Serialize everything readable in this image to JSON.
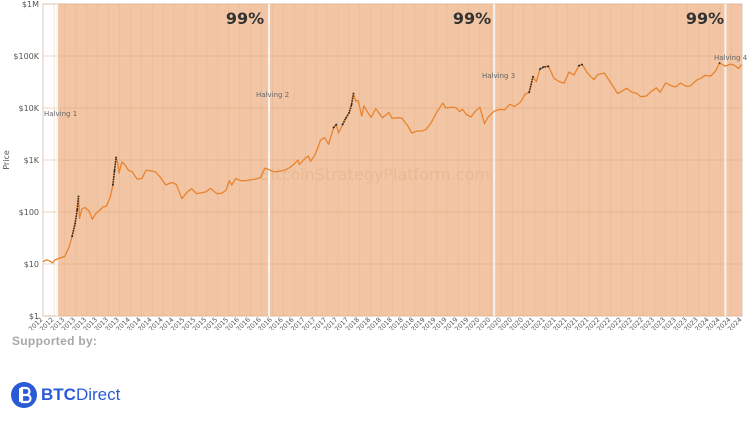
{
  "chart_data": {
    "type": "line",
    "title": "",
    "watermark": "BitcoinStrategyPlatform.com",
    "ylabel": "Price",
    "xlabel": "",
    "y_scale": "log",
    "ylim": [
      1,
      1000000
    ],
    "y_ticks": [
      "$1",
      "$10",
      "$100",
      "$1K",
      "$10K",
      "$100K",
      "$1M"
    ],
    "xlim": [
      "2012-09-01",
      "2024-08-01"
    ],
    "grid": true,
    "x_tick_labels": [
      "01-09-2012",
      "09-11-2012",
      "15-01-2013",
      "24-03-2013",
      "31-05-2013",
      "07-08-2013",
      "14-10-2013",
      "21-12-2013",
      "27-02-2014",
      "06-05-2014",
      "13-07-2014",
      "19-09-2014",
      "26-11-2014",
      "02-02-2015",
      "11-04-2015",
      "18-06-2015",
      "25-08-2015",
      "01-11-2015",
      "08-01-2016",
      "16-03-2016",
      "23-05-2016",
      "30-07-2016",
      "06-10-2016",
      "13-12-2016",
      "19-02-2017",
      "28-04-2017",
      "05-07-2017",
      "11-09-2017",
      "18-11-2017",
      "25-01-2018",
      "04-04-2018",
      "10-06-2018",
      "17-08-2018",
      "24-10-2018",
      "31-12-2018",
      "09-03-2019",
      "16-05-2019",
      "23-07-2019",
      "29-09-2019",
      "06-12-2019",
      "12-02-2020",
      "20-04-2020",
      "27-06-2020",
      "03-09-2020",
      "10-11-2020",
      "17-01-2021",
      "26-03-2021",
      "02-06-2021",
      "09-08-2021",
      "16-10-2021",
      "23-12-2021",
      "01-03-2022",
      "08-05-2022",
      "15-07-2022",
      "21-09-2022",
      "28-11-2022",
      "04-02-2023",
      "13-04-2023",
      "20-06-2023",
      "27-08-2023",
      "03-11-2023",
      "10-01-2024",
      "18-03-2024",
      "25-05-2024",
      "01-08-2024"
    ],
    "background_band": {
      "start": "2012-11-28",
      "end": "2024-07-31",
      "color": "#f2c6a4"
    },
    "period_labels": [
      "99%",
      "99%",
      "99%"
    ],
    "halvings": [
      {
        "name": "Halving 1",
        "date": "2012-11-28"
      },
      {
        "name": "Halving 2",
        "date": "2016-07-09"
      },
      {
        "name": "Halving 3",
        "date": "2020-05-11"
      },
      {
        "name": "Halving 4",
        "date": "2024-04-20"
      }
    ],
    "series": [
      {
        "color": "#e8842f",
        "points": [
          [
            "2012-09-01",
            11
          ],
          [
            "2012-09-20",
            12
          ],
          [
            "2012-10-10",
            11.5
          ],
          [
            "2012-10-31",
            10.5
          ],
          [
            "2012-11-15",
            12
          ],
          [
            "2012-12-15",
            13
          ],
          [
            "2013-01-15",
            14
          ],
          [
            "2013-02-10",
            21
          ],
          [
            "2013-03-01",
            34
          ],
          [
            "2013-03-20",
            60
          ],
          [
            "2013-04-02",
            110
          ],
          [
            "2013-04-10",
            200
          ],
          [
            "2013-04-16",
            75
          ],
          [
            "2013-05-01",
            115
          ],
          [
            "2013-05-20",
            122
          ],
          [
            "2013-06-15",
            105
          ],
          [
            "2013-07-05",
            72
          ],
          [
            "2013-07-25",
            92
          ],
          [
            "2013-08-15",
            105
          ],
          [
            "2013-09-10",
            125
          ],
          [
            "2013-10-01",
            130
          ],
          [
            "2013-10-25",
            195
          ],
          [
            "2013-11-10",
            330
          ],
          [
            "2013-11-20",
            620
          ],
          [
            "2013-11-30",
            1120
          ],
          [
            "2013-12-10",
            880
          ],
          [
            "2013-12-18",
            560
          ],
          [
            "2014-01-05",
            920
          ],
          [
            "2014-01-25",
            800
          ],
          [
            "2014-02-15",
            630
          ],
          [
            "2014-03-10",
            600
          ],
          [
            "2014-04-10",
            430
          ],
          [
            "2014-05-10",
            440
          ],
          [
            "2014-06-05",
            640
          ],
          [
            "2014-07-01",
            620
          ],
          [
            "2014-08-01",
            590
          ],
          [
            "2014-09-01",
            470
          ],
          [
            "2014-10-05",
            330
          ],
          [
            "2014-11-10",
            370
          ],
          [
            "2014-12-10",
            340
          ],
          [
            "2015-01-14",
            180
          ],
          [
            "2015-02-15",
            240
          ],
          [
            "2015-03-15",
            280
          ],
          [
            "2015-04-15",
            225
          ],
          [
            "2015-05-15",
            235
          ],
          [
            "2015-06-15",
            245
          ],
          [
            "2015-07-10",
            285
          ],
          [
            "2015-08-20",
            225
          ],
          [
            "2015-09-20",
            230
          ],
          [
            "2015-10-15",
            260
          ],
          [
            "2015-11-04",
            400
          ],
          [
            "2015-11-20",
            330
          ],
          [
            "2015-12-15",
            440
          ],
          [
            "2016-01-15",
            400
          ],
          [
            "2016-02-15",
            400
          ],
          [
            "2016-03-15",
            415
          ],
          [
            "2016-04-15",
            430
          ],
          [
            "2016-05-15",
            455
          ],
          [
            "2016-06-15",
            700
          ],
          [
            "2016-07-09",
            650
          ],
          [
            "2016-08-10",
            590
          ],
          [
            "2016-09-15",
            610
          ],
          [
            "2016-10-15",
            640
          ],
          [
            "2016-11-15",
            710
          ],
          [
            "2016-12-20",
            880
          ],
          [
            "2017-01-05",
            1000
          ],
          [
            "2017-01-15",
            820
          ],
          [
            "2017-02-15",
            1050
          ],
          [
            "2017-03-10",
            1200
          ],
          [
            "2017-03-25",
            950
          ],
          [
            "2017-04-20",
            1250
          ],
          [
            "2017-05-10",
            1750
          ],
          [
            "2017-05-25",
            2400
          ],
          [
            "2017-06-20",
            2700
          ],
          [
            "2017-07-15",
            2000
          ],
          [
            "2017-08-15",
            4200
          ],
          [
            "2017-09-01",
            4800
          ],
          [
            "2017-09-15",
            3300
          ],
          [
            "2017-10-10",
            4800
          ],
          [
            "2017-11-01",
            6500
          ],
          [
            "2017-11-20",
            8100
          ],
          [
            "2017-12-05",
            11500
          ],
          [
            "2017-12-17",
            19000
          ],
          [
            "2017-12-30",
            13500
          ],
          [
            "2018-01-15",
            14000
          ],
          [
            "2018-02-06",
            7000
          ],
          [
            "2018-02-20",
            11000
          ],
          [
            "2018-03-15",
            8300
          ],
          [
            "2018-04-06",
            6600
          ],
          [
            "2018-05-05",
            9700
          ],
          [
            "2018-06-15",
            6500
          ],
          [
            "2018-07-25",
            8200
          ],
          [
            "2018-08-15",
            6300
          ],
          [
            "2018-09-15",
            6500
          ],
          [
            "2018-10-15",
            6400
          ],
          [
            "2018-11-20",
            4500
          ],
          [
            "2018-12-15",
            3300
          ],
          [
            "2019-01-15",
            3600
          ],
          [
            "2019-02-15",
            3600
          ],
          [
            "2019-03-15",
            3900
          ],
          [
            "2019-04-15",
            5200
          ],
          [
            "2019-05-15",
            7900
          ],
          [
            "2019-06-26",
            12500
          ],
          [
            "2019-07-15",
            10000
          ],
          [
            "2019-08-15",
            10400
          ],
          [
            "2019-09-15",
            10200
          ],
          [
            "2019-10-10",
            8500
          ],
          [
            "2019-10-26",
            9500
          ],
          [
            "2019-11-20",
            7500
          ],
          [
            "2019-12-18",
            6700
          ],
          [
            "2020-01-15",
            8700
          ],
          [
            "2020-02-12",
            10300
          ],
          [
            "2020-03-12",
            5000
          ],
          [
            "2020-04-01",
            6500
          ],
          [
            "2020-05-11",
            8700
          ],
          [
            "2020-06-15",
            9400
          ],
          [
            "2020-07-15",
            9200
          ],
          [
            "2020-08-15",
            11800
          ],
          [
            "2020-09-15",
            10700
          ],
          [
            "2020-10-20",
            12800
          ],
          [
            "2020-11-20",
            18500
          ],
          [
            "2020-12-15",
            20000
          ],
          [
            "2021-01-08",
            40000
          ],
          [
            "2021-01-28",
            32000
          ],
          [
            "2021-02-20",
            56000
          ],
          [
            "2021-03-13",
            61000
          ],
          [
            "2021-04-14",
            63500
          ],
          [
            "2021-05-19",
            37000
          ],
          [
            "2021-06-22",
            32000
          ],
          [
            "2021-07-20",
            30000
          ],
          [
            "2021-08-20",
            49000
          ],
          [
            "2021-09-20",
            43000
          ],
          [
            "2021-10-20",
            65000
          ],
          [
            "2021-11-10",
            68500
          ],
          [
            "2021-12-10",
            48000
          ],
          [
            "2022-01-22",
            35000
          ],
          [
            "2022-02-15",
            44000
          ],
          [
            "2022-03-28",
            47000
          ],
          [
            "2022-05-12",
            29000
          ],
          [
            "2022-06-18",
            19000
          ],
          [
            "2022-07-15",
            21000
          ],
          [
            "2022-08-15",
            24000
          ],
          [
            "2022-09-15",
            20000
          ],
          [
            "2022-10-15",
            19200
          ],
          [
            "2022-11-10",
            16500
          ],
          [
            "2022-12-15",
            17000
          ],
          [
            "2023-01-15",
            21000
          ],
          [
            "2023-02-15",
            24500
          ],
          [
            "2023-03-10",
            20000
          ],
          [
            "2023-04-14",
            30500
          ],
          [
            "2023-05-15",
            27000
          ],
          [
            "2023-06-15",
            25500
          ],
          [
            "2023-07-15",
            30300
          ],
          [
            "2023-08-20",
            26000
          ],
          [
            "2023-09-15",
            26600
          ],
          [
            "2023-10-25",
            34500
          ],
          [
            "2023-11-20",
            37500
          ],
          [
            "2023-12-15",
            42500
          ],
          [
            "2024-01-20",
            41000
          ],
          [
            "2024-02-20",
            52000
          ],
          [
            "2024-03-14",
            73000
          ],
          [
            "2024-04-20",
            64000
          ],
          [
            "2024-05-20",
            70000
          ],
          [
            "2024-06-15",
            66000
          ],
          [
            "2024-07-10",
            57500
          ],
          [
            "2024-07-29",
            68000
          ]
        ]
      },
      {
        "color": "#2b2b2b",
        "segments": [
          [
            [
              "2013-03-01",
              34
            ],
            [
              "2013-03-20",
              60
            ],
            [
              "2013-04-02",
              110
            ],
            [
              "2013-04-10",
              200
            ]
          ],
          [
            [
              "2013-11-10",
              330
            ],
            [
              "2013-11-20",
              620
            ],
            [
              "2013-11-30",
              1120
            ]
          ],
          [
            [
              "2017-08-15",
              4200
            ],
            [
              "2017-09-01",
              4800
            ]
          ],
          [
            [
              "2017-10-10",
              4800
            ],
            [
              "2017-11-01",
              6500
            ],
            [
              "2017-11-20",
              8100
            ],
            [
              "2017-12-05",
              11500
            ],
            [
              "2017-12-17",
              19000
            ]
          ],
          [
            [
              "2020-12-15",
              20000
            ],
            [
              "2021-01-08",
              40000
            ]
          ],
          [
            [
              "2021-02-20",
              56000
            ],
            [
              "2021-03-13",
              61000
            ],
            [
              "2021-04-14",
              63500
            ]
          ],
          [
            [
              "2021-10-20",
              65000
            ],
            [
              "2021-11-10",
              68500
            ]
          ],
          [
            [
              "2024-03-14",
              73000
            ]
          ]
        ]
      }
    ]
  },
  "footer": {
    "supported_by": "Supported by:",
    "brand_bold": "BTC",
    "brand_regular": "Direct",
    "brand_color": "#2a5bd7"
  }
}
